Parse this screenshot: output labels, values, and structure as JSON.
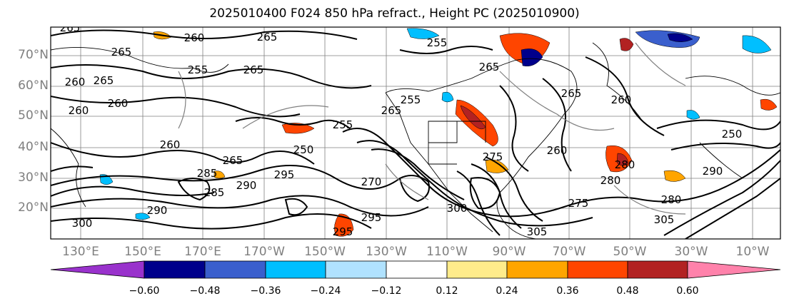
{
  "title": "2025010400 F024 850 hPa refract., Height PC (2025010900)",
  "lat_labels": [
    "70°N",
    "60°N",
    "50°N",
    "40°N",
    "30°N",
    "20°N"
  ],
  "lon_labels": [
    "130°E",
    "150°E",
    "170°E",
    "170°W",
    "150°W",
    "130°W",
    "110°W",
    "90°W",
    "70°W",
    "50°W",
    "30°W",
    "10°W"
  ],
  "contour_labels": [
    "265",
    "260",
    "265",
    "260",
    "265",
    "265",
    "260",
    "265",
    "265",
    "255",
    "250",
    "255",
    "260",
    "265",
    "265",
    "260",
    "265",
    "255",
    "250",
    "260",
    "280",
    "285",
    "290",
    "295",
    "300",
    "305",
    "300",
    "305",
    "295",
    "290",
    "295",
    "285",
    "280",
    "275",
    "270",
    "290",
    "260",
    "280",
    "275",
    "255"
  ],
  "colorbar": {
    "ticks": [
      "−0.60",
      "−0.48",
      "−0.36",
      "−0.24",
      "−0.12",
      "0.12",
      "0.24",
      "0.36",
      "0.48",
      "0.60"
    ],
    "colors": {
      "under": "#9932cc",
      "bins": [
        "#9932cc",
        "#00008b",
        "#3a5fcd",
        "#00bfff",
        "#b0e2ff",
        "#ffffff",
        "#ffec8b",
        "#ffa500",
        "#ff4500",
        "#b22222",
        "#ff82ab"
      ],
      "over": "#ff82ab"
    }
  },
  "colors": {
    "frame": "#000000",
    "gridline": "#7f7f7f",
    "contour": "#000000",
    "axis_label": "#7f7f7f"
  }
}
